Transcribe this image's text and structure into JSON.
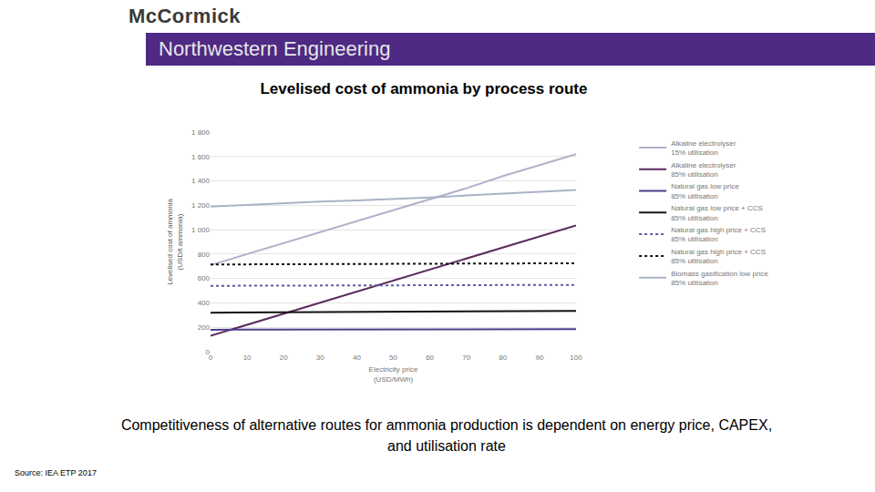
{
  "header": {
    "brand": "McCormick",
    "school": "Northwestern Engineering"
  },
  "caption": "Competitiveness of alternative routes for ammonia production is dependent on energy price, CAPEX, and utilisation rate",
  "source": "Source: IEA ETP 2017",
  "chart_data": {
    "type": "line",
    "title": "Levelised cost of ammonia by process route",
    "x_label": "Electricity price\n(USD/MWh)",
    "y_label": "Levelised cost of ammonia\n(USD/t ammonia)",
    "x": [
      0,
      10,
      20,
      30,
      40,
      50,
      60,
      70,
      80,
      90,
      100
    ],
    "xlim": [
      0,
      100
    ],
    "xticks": [
      0,
      10,
      20,
      30,
      40,
      50,
      60,
      70,
      80,
      90,
      100
    ],
    "ylim": [
      0,
      1800
    ],
    "yticks": [
      0,
      200,
      400,
      600,
      800,
      {
        "value": 1000,
        "label": "1 000"
      },
      {
        "value": 1200,
        "label": "1 200"
      },
      {
        "value": 1400,
        "label": "1 400"
      },
      {
        "value": 1600,
        "label": "1 600"
      },
      {
        "value": 1800,
        "label": "1 800"
      }
    ],
    "grid": true,
    "legend": "right",
    "series": [
      {
        "name": "Alkaline electrolyser\n15% utilisation",
        "color": "#b3b0c8",
        "line_style": "solid",
        "values": [
          710,
          800,
          890,
          980,
          1070,
          1160,
          1250,
          1340,
          1440,
          1530,
          1620
        ]
      },
      {
        "name": "Alkaline electrolyser\n85% utilisation",
        "color": "#5a2a5c",
        "line_style": "solid",
        "values": [
          130,
          220,
          310,
          400,
          490,
          580,
          670,
          760,
          850,
          940,
          1035
        ]
      },
      {
        "name": "Natural gas low price\n85% utilisation",
        "color": "#4a3f8c",
        "line_style": "solid",
        "values": [
          180,
          180,
          180,
          180,
          181,
          182,
          182,
          183,
          184,
          184,
          185
        ]
      },
      {
        "name": "Natural gas low price + CCS\n85% utilisation",
        "color": "#111111",
        "line_style": "solid",
        "values": [
          320,
          322,
          323,
          325,
          326,
          328,
          329,
          331,
          332,
          334,
          335
        ]
      },
      {
        "name": "Natural gas high price + CCS\n85% utilisation",
        "color": "#5a5f9c",
        "line_style": "dot",
        "values": [
          540,
          541,
          542,
          542,
          543,
          544,
          545,
          546,
          547,
          547,
          548
        ]
      },
      {
        "name": "Natural gas high price + CCS\n85% utilisation",
        "color": "#111111",
        "line_style": "dot",
        "values": [
          715,
          716,
          717,
          718,
          719,
          720,
          721,
          722,
          723,
          724,
          725
        ]
      },
      {
        "name": "Biomass gasification low price\n85% utilisation",
        "color": "#a9b3c6",
        "line_style": "solid",
        "values": [
          1190,
          1205,
          1215,
          1230,
          1240,
          1250,
          1265,
          1280,
          1295,
          1310,
          1325
        ]
      }
    ]
  }
}
